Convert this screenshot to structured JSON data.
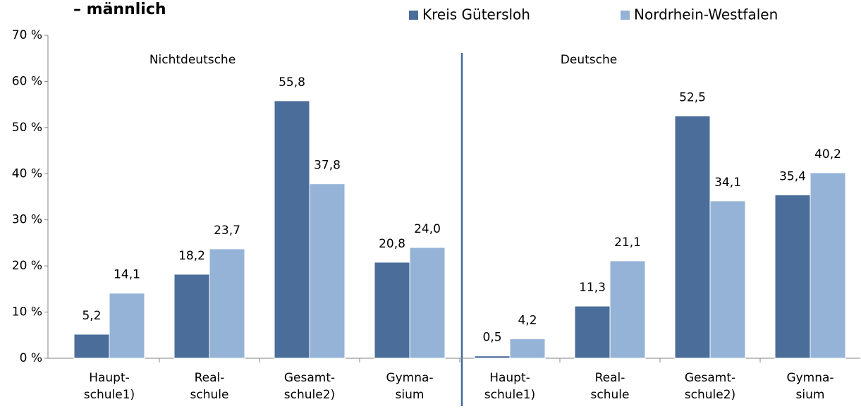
{
  "chart_data": {
    "type": "bar",
    "title": "– männlich",
    "annotations": [
      "Nichtdeutsche",
      "Deutsche"
    ],
    "categories": [
      "Haupt-\nschule1)",
      "Real-\nschule",
      "Gesamt-\nschule2)",
      "Gymna-\nsium",
      "Haupt-\nschule1)",
      "Real-\nschule",
      "Gesamt-\nschule2)",
      "Gymna-\nsium"
    ],
    "series": [
      {
        "name": "Kreis Gütersloh",
        "color": "#4a6d9a",
        "values": [
          5.2,
          18.2,
          55.8,
          20.8,
          0.5,
          11.3,
          52.5,
          35.4
        ],
        "value_labels": [
          "5,2",
          "18,2",
          "55,8",
          "20,8",
          "0,5",
          "11,3",
          "52,5",
          "35,4"
        ]
      },
      {
        "name": "Nordrhein-Westfalen",
        "color": "#95b3d7",
        "values": [
          14.1,
          23.7,
          37.8,
          24.0,
          4.2,
          21.1,
          34.1,
          40.2
        ],
        "value_labels": [
          "14,1",
          "23,7",
          "37,8",
          "24,0",
          "4,2",
          "21,1",
          "34,1",
          "40,2"
        ]
      }
    ],
    "ylim": [
      0,
      70
    ],
    "yticks": [
      {
        "value": 0,
        "label": "0 %"
      },
      {
        "value": 10,
        "label": "10 %"
      },
      {
        "value": 20,
        "label": "20 %"
      },
      {
        "value": 30,
        "label": "30 %"
      },
      {
        "value": 40,
        "label": "40 %"
      },
      {
        "value": 50,
        "label": "50 %"
      },
      {
        "value": 60,
        "label": "60 %"
      },
      {
        "value": 70,
        "label": "70 %"
      }
    ],
    "grid": false
  }
}
